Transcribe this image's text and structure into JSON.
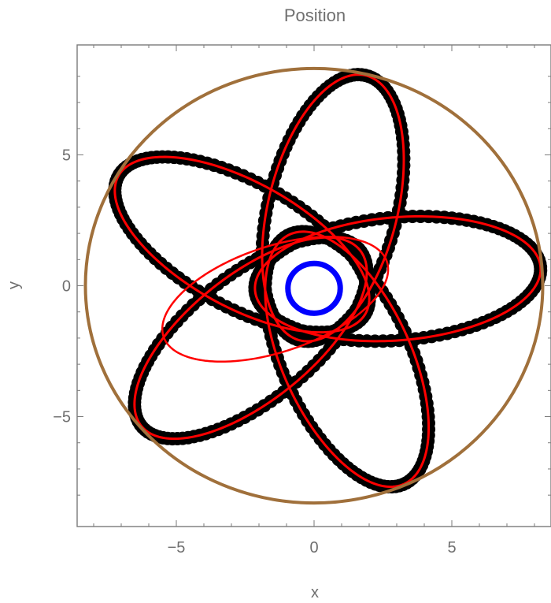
{
  "chart_data": {
    "type": "scatter",
    "title": "Position",
    "xlabel": "x",
    "ylabel": "y",
    "xlim": [
      -8.6,
      8.6
    ],
    "ylim": [
      -9.2,
      9.2
    ],
    "x_ticks": [
      -5,
      0,
      5
    ],
    "y_ticks": [
      -5,
      0,
      5
    ],
    "x_tick_labels": [
      "−5",
      "0",
      "5"
    ],
    "y_tick_labels": [
      "−5",
      "0",
      "5"
    ],
    "grid": false,
    "series": [
      {
        "style": "markers",
        "color": "#000000",
        "marker": "filled-circle",
        "curve": "rosette",
        "petal_semi_major": 5.2,
        "petal_semi_minor": 2.35,
        "petal_center_distance": 3.05,
        "petal_count": 5,
        "petal_orientations_deg": [
          5,
          77,
          149,
          221,
          293
        ]
      },
      {
        "style": "line",
        "color": "#ff0000",
        "curve": "rosette",
        "petal_semi_major": 5.2,
        "petal_semi_minor": 2.35,
        "petal_center_distance": 3.05,
        "petal_count": 5,
        "petal_orientations_deg": [
          5,
          77,
          149,
          221,
          293
        ],
        "incomplete_inner_orbit": {
          "semi_major": 4.3,
          "semi_minor": 2.0,
          "center_distance": 1.5,
          "orientation_deg": 200
        }
      },
      {
        "style": "line",
        "color": "#a0703b",
        "curve": "circle",
        "center": [
          0,
          0
        ],
        "radius": 8.3
      },
      {
        "style": "line",
        "color": "#0000ff",
        "curve": "circle",
        "center": [
          0,
          -0.1
        ],
        "radius": 0.95
      }
    ]
  }
}
